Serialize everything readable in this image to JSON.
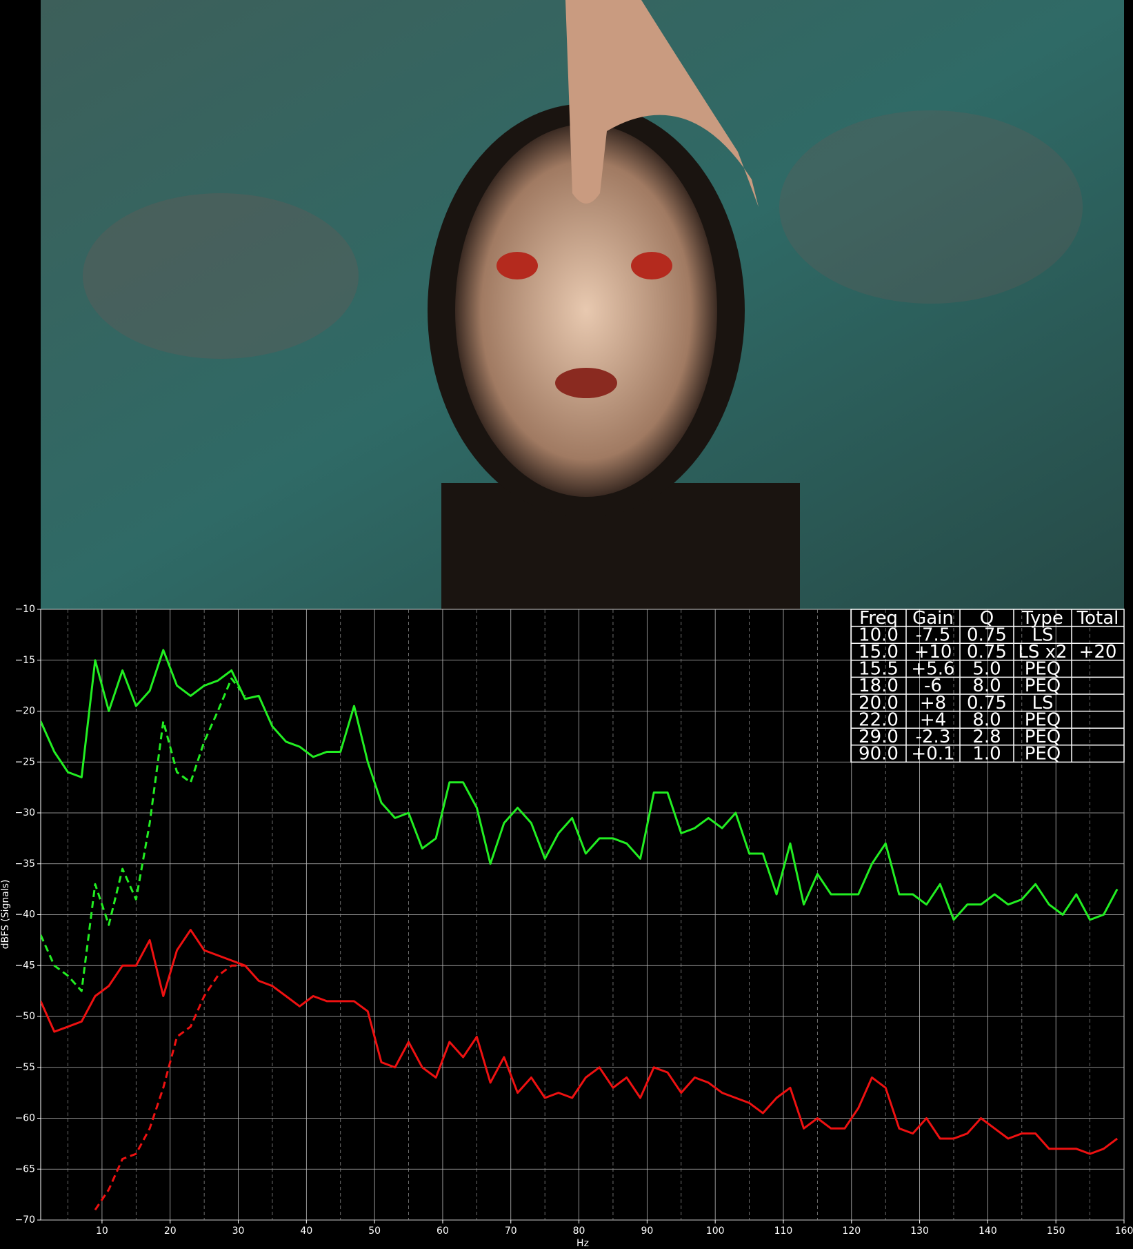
{
  "chart_data": {
    "type": "line",
    "xlabel": "Hz",
    "ylabel": "dBFS (Signals)",
    "xlim": [
      1,
      160
    ],
    "ylim": [
      -70,
      -10
    ],
    "xticks": [
      10,
      20,
      30,
      40,
      50,
      60,
      70,
      80,
      90,
      100,
      110,
      120,
      130,
      140,
      150,
      160
    ],
    "xminorticks": [
      5,
      15,
      25,
      35,
      45,
      55,
      65,
      75,
      85,
      95,
      105,
      115,
      125,
      135,
      145,
      155
    ],
    "yticks": [
      {
        "value": -70,
        "label": "−70"
      },
      {
        "value": -65,
        "label": "−65"
      },
      {
        "value": -60,
        "label": "−60"
      },
      {
        "value": -55,
        "label": "−55"
      },
      {
        "value": -50,
        "label": "−50"
      },
      {
        "value": -45,
        "label": "−45"
      },
      {
        "value": -40,
        "label": "−40"
      },
      {
        "value": -35,
        "label": "−35"
      },
      {
        "value": -30,
        "label": "−30"
      },
      {
        "value": -25,
        "label": "−25"
      },
      {
        "value": -20,
        "label": "−20"
      },
      {
        "value": -15,
        "label": "−15"
      },
      {
        "value": -10,
        "label": "−10"
      }
    ],
    "grid": true,
    "x": [
      1,
      3,
      5,
      7,
      9,
      11,
      13,
      15,
      17,
      19,
      21,
      23,
      25,
      27,
      29,
      31,
      33,
      35,
      37,
      39,
      41,
      43,
      45,
      47,
      49,
      51,
      53,
      55,
      57,
      59,
      61,
      63,
      65,
      67,
      69,
      71,
      73,
      75,
      77,
      79,
      81,
      83,
      85,
      87,
      89,
      91,
      93,
      95,
      97,
      99,
      101,
      103,
      105,
      107,
      109,
      111,
      113,
      115,
      117,
      119,
      121,
      123,
      125,
      127,
      129,
      131,
      133,
      135,
      137,
      139,
      141,
      143,
      145,
      147,
      149,
      151,
      153,
      155,
      157,
      159
    ],
    "series": [
      {
        "color": "#22ee22",
        "dash": false,
        "values": [
          -21,
          -24,
          -26,
          -26.5,
          -15,
          -20,
          -16,
          -19.5,
          -18,
          -14,
          -17.5,
          -18.5,
          -17.5,
          -17,
          -16,
          -18.8,
          -18.5,
          -21.5,
          -23,
          -23.5,
          -24.5,
          -24,
          -24,
          -19.5,
          -25,
          -29,
          -30.5,
          -30,
          -33.5,
          -32.5,
          -27,
          -27,
          -29.5,
          -35,
          -31,
          -29.5,
          -31,
          -34.5,
          -32,
          -30.5,
          -34,
          -32.5,
          -32.5,
          -33,
          -34.5,
          -28,
          -28,
          -32,
          -31.5,
          -30.5,
          -31.5,
          -30,
          -34,
          -34,
          -38,
          -33,
          -39,
          -36,
          -38,
          -38,
          -38,
          -35,
          -33,
          -38,
          -38,
          -39,
          -37,
          -40.5,
          -39,
          -39,
          -38,
          -39,
          -38.5,
          -37,
          -39,
          -40,
          -38,
          -40.5,
          -40,
          -37.5
        ]
      },
      {
        "color": "#22ee22",
        "dash": true,
        "values": [
          -42,
          -45,
          -46,
          -47.5,
          -37,
          -41,
          -35.5,
          -38.5,
          -31,
          -21,
          -26,
          -27,
          -23,
          -20,
          -16.8,
          -18.5,
          null,
          null,
          null,
          null,
          null,
          null,
          null,
          null,
          null,
          null,
          null,
          null,
          null,
          null,
          null,
          null,
          null,
          null,
          null,
          null,
          null,
          null,
          null,
          null,
          null,
          null,
          null,
          null,
          null,
          null,
          null,
          null,
          null,
          null,
          null,
          null,
          null,
          null,
          null,
          null,
          null,
          null,
          null,
          null,
          null,
          null,
          null,
          null,
          null,
          null,
          null,
          null,
          null,
          null,
          null,
          null,
          null,
          null,
          null,
          null,
          null,
          null,
          null,
          null
        ]
      },
      {
        "color": "#ee1111",
        "dash": false,
        "values": [
          -48.5,
          -51.5,
          -51,
          -50.5,
          -48,
          -47,
          -45,
          -45,
          -42.5,
          -48,
          -43.5,
          -41.5,
          -43.5,
          -44,
          -44.5,
          -45,
          -46.5,
          -47,
          -48,
          -49,
          -48,
          -48.5,
          -48.5,
          -48.5,
          -49.5,
          -54.5,
          -55,
          -52.5,
          -55,
          -56,
          -52.5,
          -54,
          -52,
          -56.5,
          -54,
          -57.5,
          -56,
          -58,
          -57.5,
          -58,
          -56,
          -55,
          -57,
          -56,
          -58,
          -55,
          -55.5,
          -57.5,
          -56,
          -56.5,
          -57.5,
          -58,
          -58.5,
          -59.5,
          -58,
          -57,
          -61,
          -60,
          -61,
          -61,
          -59,
          -56,
          -57,
          -61,
          -61.5,
          -60,
          -62,
          -62,
          -61.5,
          -60,
          -61,
          -62,
          -61.5,
          -61.5,
          -63,
          -63,
          -63,
          -63.5,
          -63,
          -62
        ]
      },
      {
        "color": "#ee1111",
        "dash": true,
        "values": [
          null,
          null,
          null,
          null,
          -69,
          -67,
          -64,
          -63.5,
          -61,
          -57,
          -52,
          -51,
          -48,
          -46,
          -45,
          -45,
          null,
          null,
          null,
          null,
          null,
          null,
          null,
          null,
          null,
          null,
          null,
          null,
          null,
          null,
          null,
          null,
          null,
          null,
          null,
          null,
          null,
          null,
          null,
          null,
          null,
          null,
          null,
          null,
          null,
          null,
          null,
          null,
          null,
          null,
          null,
          null,
          null,
          null,
          null,
          null,
          null,
          null,
          null,
          null,
          null,
          null,
          null,
          null,
          null,
          null,
          null,
          null,
          null,
          null,
          null,
          null,
          null,
          null,
          null,
          null,
          null,
          null,
          null,
          null
        ]
      }
    ],
    "table": {
      "columns": [
        "Freq",
        "Gain",
        "Q",
        "Type",
        "Total"
      ],
      "rows": [
        [
          "10.0",
          "-7.5",
          "0.75",
          "LS",
          null
        ],
        [
          "15.0",
          "+10",
          "0.75",
          "LS x2",
          "+20"
        ],
        [
          "15.5",
          "+5.6",
          "5.0",
          "PEQ",
          null
        ],
        [
          "18.0",
          "-6",
          "8.0",
          "PEQ",
          null
        ],
        [
          "20.0",
          "+8",
          "0.75",
          "LS",
          null
        ],
        [
          "22.0",
          "+4",
          "8.0",
          "PEQ",
          null
        ],
        [
          "29.0",
          "-2.3",
          "2.8",
          "PEQ",
          null
        ],
        [
          "90.0",
          "+0.1",
          "1.0",
          "PEQ",
          null
        ]
      ]
    }
  }
}
